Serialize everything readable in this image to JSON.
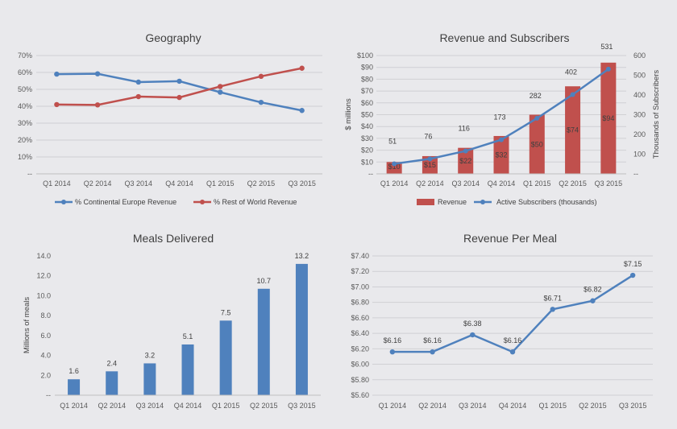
{
  "chart_data": [
    {
      "id": "geo",
      "type": "line",
      "title": "Geography",
      "categories": [
        "Q1 2014",
        "Q2 2014",
        "Q3 2014",
        "Q4 2014",
        "Q1 2015",
        "Q2 2015",
        "Q3 2015"
      ],
      "ylim": [
        0,
        70
      ],
      "yticks": [
        "--",
        "10%",
        "20%",
        "30%",
        "40%",
        "50%",
        "60%",
        "70%"
      ],
      "series": [
        {
          "name": "% Continental Europe Revenue",
          "color": "#4f81bd",
          "values": [
            59,
            59.2,
            54.3,
            54.8,
            48.3,
            42.3,
            37.5
          ]
        },
        {
          "name": "% Rest of World Revenue",
          "color": "#c0504d",
          "values": [
            41,
            40.8,
            45.7,
            45.2,
            51.7,
            57.7,
            62.5
          ]
        }
      ]
    },
    {
      "id": "rev",
      "type": "bar+line",
      "title": "Revenue and Subscribers",
      "categories": [
        "Q1 2014",
        "Q2 2014",
        "Q3 2014",
        "Q4 2014",
        "Q1 2015",
        "Q2 2015",
        "Q3 2015"
      ],
      "ylabel": "$ millions",
      "y2label": "Thousands of Subscribers",
      "ylim": [
        0,
        100
      ],
      "y2lim": [
        0,
        600
      ],
      "yticks": [
        "--",
        "$10",
        "$20",
        "$30",
        "$40",
        "$50",
        "$60",
        "$70",
        "$80",
        "$90",
        "$100"
      ],
      "y2ticks": [
        "--",
        "100",
        "200",
        "300",
        "400",
        "500",
        "600"
      ],
      "revenue": {
        "name": "Revenue",
        "color": "#c0504d",
        "values": [
          10,
          15,
          22,
          32,
          50,
          74,
          94
        ],
        "labels": [
          "$10",
          "$15",
          "$22",
          "$32",
          "$50",
          "$74",
          "$94"
        ]
      },
      "subscribers": {
        "name": "Active Subscribers (thousands)",
        "color": "#4f81bd",
        "values": [
          51,
          76,
          116,
          173,
          282,
          402,
          531
        ],
        "labels": [
          "51",
          "76",
          "116",
          "173",
          "282",
          "402",
          "531"
        ]
      }
    },
    {
      "id": "meals",
      "type": "bar",
      "title": "Meals Delivered",
      "ylabel": "Millions of meals",
      "categories": [
        "Q1 2014",
        "Q2 2014",
        "Q3 2014",
        "Q4 2014",
        "Q1 2015",
        "Q2 2015",
        "Q3 2015"
      ],
      "values": [
        1.6,
        2.4,
        3.2,
        5.1,
        7.5,
        10.7,
        13.2
      ],
      "labels": [
        "1.6",
        "2.4",
        "3.2",
        "5.1",
        "7.5",
        "10.7",
        "13.2"
      ],
      "ylim": [
        0,
        14
      ],
      "yticks": [
        "--",
        "2.0",
        "4.0",
        "6.0",
        "8.0",
        "10.0",
        "12.0",
        "14.0"
      ],
      "color": "#4f81bd"
    },
    {
      "id": "rpm",
      "type": "line",
      "title": "Revenue Per Meal",
      "categories": [
        "Q1 2014",
        "Q2 2014",
        "Q3 2014",
        "Q4 2014",
        "Q1 2015",
        "Q2 2015",
        "Q3 2015"
      ],
      "values": [
        6.16,
        6.16,
        6.38,
        6.16,
        6.71,
        6.82,
        7.15
      ],
      "labels": [
        "$6.16",
        "$6.16",
        "$6.38",
        "$6.16",
        "$6.71",
        "$6.82",
        "$7.15"
      ],
      "ylim": [
        5.6,
        7.4
      ],
      "yticks": [
        "$5.60",
        "$5.80",
        "$6.00",
        "$6.20",
        "$6.40",
        "$6.60",
        "$6.80",
        "$7.00",
        "$7.20",
        "$7.40"
      ],
      "color": "#4f81bd"
    }
  ]
}
